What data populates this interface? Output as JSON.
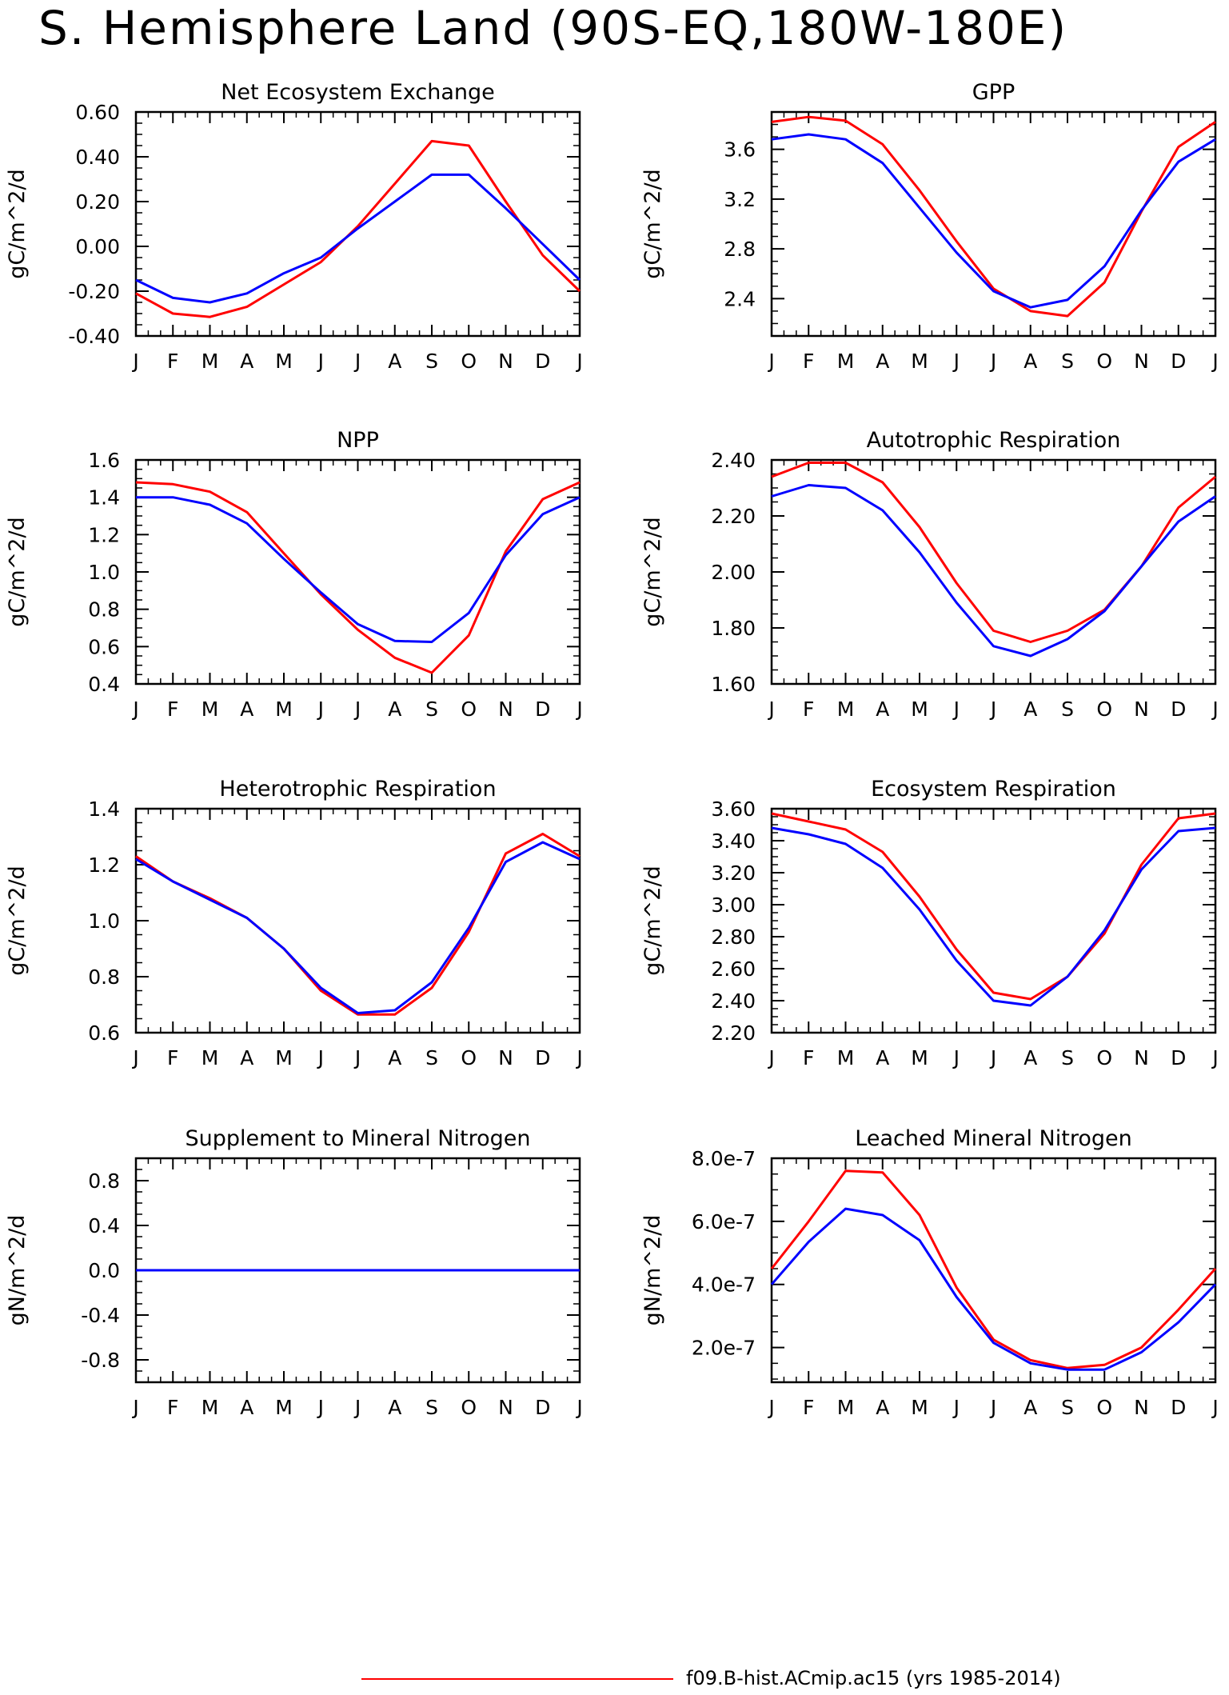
{
  "title": "S. Hemisphere Land (90S-EQ,180W-180E)",
  "legend": {
    "label": "f09.B-hist.ACmip.ac15 (yrs 1985-2014)",
    "color": "#ff0000"
  },
  "series_colors": {
    "red": "#ff0000",
    "blue": "#0000ff"
  },
  "chart_data": [
    {
      "type": "line",
      "title": "Net Ecosystem Exchange",
      "ylabel": "gC/m^2/d",
      "categories": [
        "J",
        "F",
        "M",
        "A",
        "M",
        "J",
        "J",
        "A",
        "S",
        "O",
        "N",
        "D",
        "J"
      ],
      "ylim": [
        -0.4,
        0.6
      ],
      "yticks": [
        -0.4,
        -0.2,
        0.0,
        0.2,
        0.4,
        0.6
      ],
      "ytick_labels": [
        "-0.40",
        "-0.20",
        "0.00",
        "0.20",
        "0.40",
        "0.60"
      ],
      "series": [
        {
          "color": "red",
          "values": [
            -0.21,
            -0.3,
            -0.315,
            -0.27,
            -0.17,
            -0.07,
            0.09,
            0.28,
            0.47,
            0.45,
            0.2,
            -0.04,
            -0.2
          ]
        },
        {
          "color": "blue",
          "values": [
            -0.15,
            -0.23,
            -0.25,
            -0.21,
            -0.12,
            -0.05,
            0.08,
            0.2,
            0.32,
            0.32,
            0.17,
            0.01,
            -0.15
          ]
        }
      ]
    },
    {
      "type": "line",
      "title": "GPP",
      "ylabel": "gC/m^2/d",
      "categories": [
        "J",
        "F",
        "M",
        "A",
        "M",
        "J",
        "J",
        "A",
        "S",
        "O",
        "N",
        "D",
        "J"
      ],
      "ylim": [
        2.1,
        3.9
      ],
      "yticks": [
        2.4,
        2.8,
        3.2,
        3.6
      ],
      "ytick_labels": [
        "2.4",
        "2.8",
        "3.2",
        "3.6"
      ],
      "series": [
        {
          "color": "red",
          "values": [
            3.82,
            3.86,
            3.83,
            3.64,
            3.27,
            2.86,
            2.48,
            2.3,
            2.26,
            2.53,
            3.1,
            3.62,
            3.82
          ]
        },
        {
          "color": "blue",
          "values": [
            3.68,
            3.72,
            3.68,
            3.49,
            3.13,
            2.77,
            2.46,
            2.33,
            2.39,
            2.66,
            3.11,
            3.5,
            3.68
          ]
        }
      ]
    },
    {
      "type": "line",
      "title": "NPP",
      "ylabel": "gC/m^2/d",
      "categories": [
        "J",
        "F",
        "M",
        "A",
        "M",
        "J",
        "J",
        "A",
        "S",
        "O",
        "N",
        "D",
        "J"
      ],
      "ylim": [
        0.4,
        1.6
      ],
      "yticks": [
        0.4,
        0.6,
        0.8,
        1.0,
        1.2,
        1.4,
        1.6
      ],
      "ytick_labels": [
        "0.4",
        "0.6",
        "0.8",
        "1.0",
        "1.2",
        "1.4",
        "1.6"
      ],
      "series": [
        {
          "color": "red",
          "values": [
            1.48,
            1.47,
            1.43,
            1.32,
            1.1,
            0.88,
            0.69,
            0.54,
            0.46,
            0.66,
            1.11,
            1.39,
            1.48
          ]
        },
        {
          "color": "blue",
          "values": [
            1.4,
            1.4,
            1.36,
            1.26,
            1.07,
            0.89,
            0.72,
            0.63,
            0.625,
            0.78,
            1.09,
            1.31,
            1.4
          ]
        }
      ]
    },
    {
      "type": "line",
      "title": "Autotrophic Respiration",
      "ylabel": "gC/m^2/d",
      "categories": [
        "J",
        "F",
        "M",
        "A",
        "M",
        "J",
        "J",
        "A",
        "S",
        "O",
        "N",
        "D",
        "J"
      ],
      "ylim": [
        1.6,
        2.4
      ],
      "yticks": [
        1.6,
        1.8,
        2.0,
        2.2,
        2.4
      ],
      "ytick_labels": [
        "1.60",
        "1.80",
        "2.00",
        "2.20",
        "2.40"
      ],
      "series": [
        {
          "color": "red",
          "values": [
            2.34,
            2.39,
            2.39,
            2.32,
            2.16,
            1.96,
            1.79,
            1.75,
            1.79,
            1.865,
            2.02,
            2.23,
            2.34
          ]
        },
        {
          "color": "blue",
          "values": [
            2.27,
            2.31,
            2.3,
            2.22,
            2.07,
            1.89,
            1.735,
            1.7,
            1.76,
            1.86,
            2.02,
            2.18,
            2.27
          ]
        }
      ]
    },
    {
      "type": "line",
      "title": "Heterotrophic Respiration",
      "ylabel": "gC/m^2/d",
      "categories": [
        "J",
        "F",
        "M",
        "A",
        "M",
        "J",
        "J",
        "A",
        "S",
        "O",
        "N",
        "D",
        "J"
      ],
      "ylim": [
        0.6,
        1.4
      ],
      "yticks": [
        0.6,
        0.8,
        1.0,
        1.2,
        1.4
      ],
      "ytick_labels": [
        "0.6",
        "0.8",
        "1.0",
        "1.2",
        "1.4"
      ],
      "series": [
        {
          "color": "red",
          "values": [
            1.23,
            1.14,
            1.08,
            1.01,
            0.9,
            0.75,
            0.665,
            0.665,
            0.76,
            0.96,
            1.24,
            1.31,
            1.23
          ]
        },
        {
          "color": "blue",
          "values": [
            1.22,
            1.14,
            1.075,
            1.01,
            0.9,
            0.76,
            0.67,
            0.68,
            0.78,
            0.975,
            1.21,
            1.28,
            1.22
          ]
        }
      ]
    },
    {
      "type": "line",
      "title": "Ecosystem Respiration",
      "ylabel": "gC/m^2/d",
      "categories": [
        "J",
        "F",
        "M",
        "A",
        "M",
        "J",
        "J",
        "A",
        "S",
        "O",
        "N",
        "D",
        "J"
      ],
      "ylim": [
        2.2,
        3.6
      ],
      "yticks": [
        2.2,
        2.4,
        2.6,
        2.8,
        3.0,
        3.2,
        3.4,
        3.6
      ],
      "ytick_labels": [
        "2.20",
        "2.40",
        "2.60",
        "2.80",
        "3.00",
        "3.20",
        "3.40",
        "3.60"
      ],
      "series": [
        {
          "color": "red",
          "values": [
            3.57,
            3.52,
            3.47,
            3.33,
            3.05,
            2.72,
            2.45,
            2.41,
            2.55,
            2.82,
            3.25,
            3.54,
            3.57
          ]
        },
        {
          "color": "blue",
          "values": [
            3.48,
            3.44,
            3.38,
            3.23,
            2.97,
            2.65,
            2.4,
            2.37,
            2.55,
            2.84,
            3.22,
            3.46,
            3.48
          ]
        }
      ]
    },
    {
      "type": "line",
      "title": "Supplement to Mineral Nitrogen",
      "ylabel": "gN/m^2/d",
      "categories": [
        "J",
        "F",
        "M",
        "A",
        "M",
        "J",
        "J",
        "A",
        "S",
        "O",
        "N",
        "D",
        "J"
      ],
      "ylim": [
        -1.0,
        1.0
      ],
      "yticks": [
        -0.8,
        -0.4,
        0.0,
        0.4,
        0.8
      ],
      "ytick_labels": [
        "-0.8",
        "-0.4",
        "0.0",
        "0.4",
        "0.8"
      ],
      "series": [
        {
          "color": "red",
          "values": [
            0,
            0,
            0,
            0,
            0,
            0,
            0,
            0,
            0,
            0,
            0,
            0,
            0
          ]
        },
        {
          "color": "blue",
          "values": [
            0,
            0,
            0,
            0,
            0,
            0,
            0,
            0,
            0,
            0,
            0,
            0,
            0
          ]
        }
      ]
    },
    {
      "type": "line",
      "title": "Leached Mineral Nitrogen",
      "ylabel": "gN/m^2/d",
      "categories": [
        "J",
        "F",
        "M",
        "A",
        "M",
        "J",
        "J",
        "A",
        "S",
        "O",
        "N",
        "D",
        "J"
      ],
      "ylim": [
        9e-08,
        8e-07
      ],
      "yticks": [
        2e-07,
        4e-07,
        6e-07,
        8e-07
      ],
      "ytick_labels": [
        "2.0e-7",
        "4.0e-7",
        "6.0e-7",
        "8.0e-7"
      ],
      "series": [
        {
          "color": "red",
          "values": [
            4.5e-07,
            6e-07,
            7.6e-07,
            7.55e-07,
            6.2e-07,
            3.9e-07,
            2.25e-07,
            1.6e-07,
            1.35e-07,
            1.45e-07,
            2e-07,
            3.2e-07,
            4.5e-07
          ]
        },
        {
          "color": "blue",
          "values": [
            4e-07,
            5.35e-07,
            6.4e-07,
            6.2e-07,
            5.4e-07,
            3.6e-07,
            2.15e-07,
            1.5e-07,
            1.3e-07,
            1.3e-07,
            1.85e-07,
            2.8e-07,
            4e-07
          ]
        }
      ]
    }
  ]
}
